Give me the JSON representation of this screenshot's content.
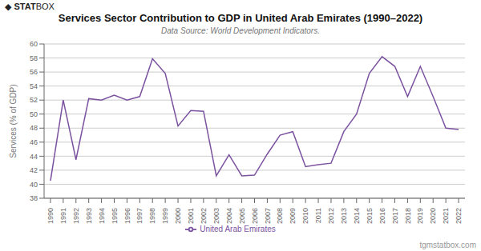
{
  "chart_data": {
    "type": "line",
    "title": "Services Sector Contribution to GDP in United Arab Emirates (1990–2022)",
    "subtitle": "Data Source: World Development Indicators.",
    "y_label": "Services (% of GDP)",
    "annotations": [
      "◆",
      "STAT",
      "BOX",
      "tgmstatbox.com"
    ],
    "x": [
      1990,
      1991,
      1992,
      1993,
      1994,
      1995,
      1996,
      1997,
      1998,
      1999,
      2000,
      2001,
      2002,
      2003,
      2004,
      2005,
      2006,
      2007,
      2008,
      2009,
      2010,
      2011,
      2012,
      2013,
      2014,
      2015,
      2016,
      2017,
      2018,
      2019,
      2020,
      2021,
      2022
    ],
    "series": [
      {
        "name": "United Arab Emirates",
        "color": "#7b52a0",
        "values": [
          40.5,
          52.0,
          43.5,
          52.2,
          52.0,
          52.7,
          52.0,
          52.5,
          57.9,
          55.8,
          48.3,
          50.5,
          50.4,
          41.2,
          44.2,
          41.2,
          41.3,
          44.3,
          47.0,
          47.5,
          42.5,
          42.8,
          43.0,
          47.5,
          50.0,
          55.8,
          58.2,
          56.8,
          52.5,
          56.8,
          52.5,
          48.0,
          47.8
        ]
      }
    ],
    "xlim": [
      1989.5,
      2022.5
    ],
    "xticks": [
      1990,
      1991,
      1992,
      1993,
      1994,
      1995,
      1996,
      1997,
      1998,
      1999,
      2000,
      2001,
      2002,
      2003,
      2004,
      2005,
      2006,
      2007,
      2008,
      2009,
      2010,
      2011,
      2012,
      2013,
      2014,
      2015,
      2016,
      2017,
      2018,
      2019,
      2020,
      2021,
      2022
    ],
    "ylim": [
      38,
      60
    ],
    "yticks": [
      38,
      40,
      42,
      44,
      46,
      48,
      50,
      52,
      54,
      56,
      58,
      60
    ],
    "grid": true,
    "legend": "bottom"
  }
}
